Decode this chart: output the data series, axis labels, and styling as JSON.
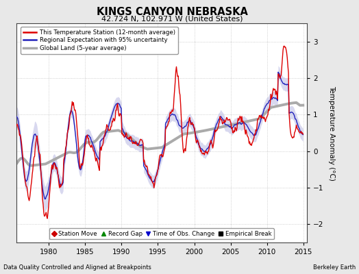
{
  "title": "KINGS CANYON NEBRASKA",
  "subtitle": "42.724 N, 102.971 W (United States)",
  "ylabel": "Temperature Anomaly (°C)",
  "footer_left": "Data Quality Controlled and Aligned at Breakpoints",
  "footer_right": "Berkeley Earth",
  "xlim": [
    1975.5,
    2015.5
  ],
  "ylim": [
    -2.5,
    3.5
  ],
  "yticks": [
    -2,
    -1,
    0,
    1,
    2,
    3
  ],
  "xticks": [
    1980,
    1985,
    1990,
    1995,
    2000,
    2005,
    2010,
    2015
  ],
  "background_color": "#e8e8e8",
  "plot_bg_color": "#ffffff",
  "line_color_station": "#dd0000",
  "line_color_regional": "#2222bb",
  "line_color_global": "#aaaaaa",
  "fill_color_regional": "#aaaadd",
  "legend_items": [
    {
      "label": "This Temperature Station (12-month average)",
      "color": "#dd0000",
      "lw": 1.5
    },
    {
      "label": "Regional Expectation with 95% uncertainty",
      "color": "#2222bb",
      "lw": 1.5
    },
    {
      "label": "Global Land (5-year average)",
      "color": "#aaaaaa",
      "lw": 2.5
    }
  ],
  "marker_items": [
    {
      "label": "Station Move",
      "color": "#cc0000",
      "marker": "D"
    },
    {
      "label": "Record Gap",
      "color": "#008800",
      "marker": "^"
    },
    {
      "label": "Time of Obs. Change",
      "color": "#0000cc",
      "marker": "v"
    },
    {
      "label": "Empirical Break",
      "color": "#000000",
      "marker": "s"
    }
  ]
}
